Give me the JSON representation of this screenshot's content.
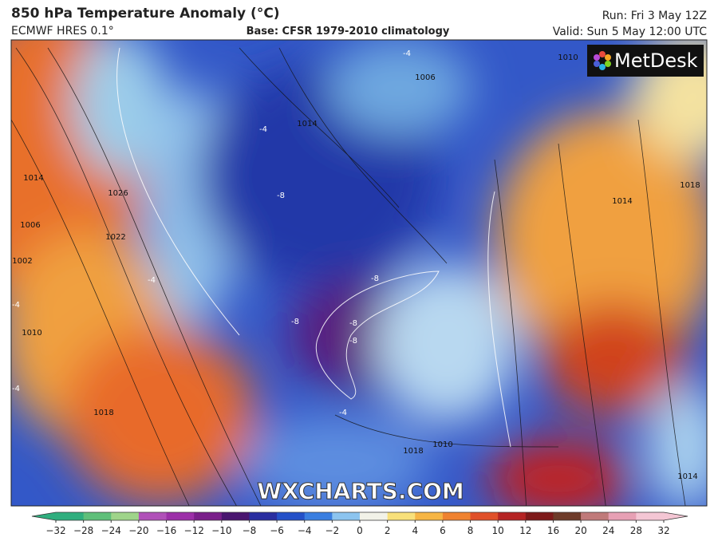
{
  "header": {
    "title": "850 hPa Temperature Anomaly (°C)",
    "model": "ECMWF HRES 0.1°",
    "base": "Base: CFSR 1979-2010 climatology",
    "run": "Run: Fri 3 May 12Z",
    "valid": "Valid: Sun 5 May 12:00 UTC"
  },
  "logo": "MetDesk",
  "watermark": "WXCHARTS.COM",
  "map_labels": [
    "1014",
    "1026",
    "1022",
    "1006",
    "1002",
    "1010",
    "1018",
    "1014",
    "1006",
    "1010",
    "1014",
    "1018",
    "1010",
    "1018",
    "1014",
    "-4",
    "-4",
    "-4",
    "-8",
    "-8",
    "-8",
    "-8",
    "-8",
    "-4",
    "-4",
    "-4"
  ],
  "colorbar": {
    "ticks": [
      -32,
      -28,
      -24,
      -20,
      -16,
      -12,
      -10,
      -8,
      -6,
      -4,
      -2,
      0,
      2,
      4,
      6,
      8,
      10,
      12,
      16,
      20,
      24,
      28,
      32
    ],
    "colors": [
      "#2fae7e",
      "#5fbf7a",
      "#9fd48a",
      "#b050b8",
      "#9c2fa8",
      "#7a1f8a",
      "#4a1670",
      "#2a2ea0",
      "#2450c8",
      "#3a7ee0",
      "#8cc4ef",
      "#f2f2e8",
      "#f8e07a",
      "#f6b545",
      "#ef8230",
      "#e0502a",
      "#b52424",
      "#7e1a1a",
      "#6e3b2a",
      "#c07a7a",
      "#e7a0b4",
      "#f4c6d4"
    ]
  }
}
